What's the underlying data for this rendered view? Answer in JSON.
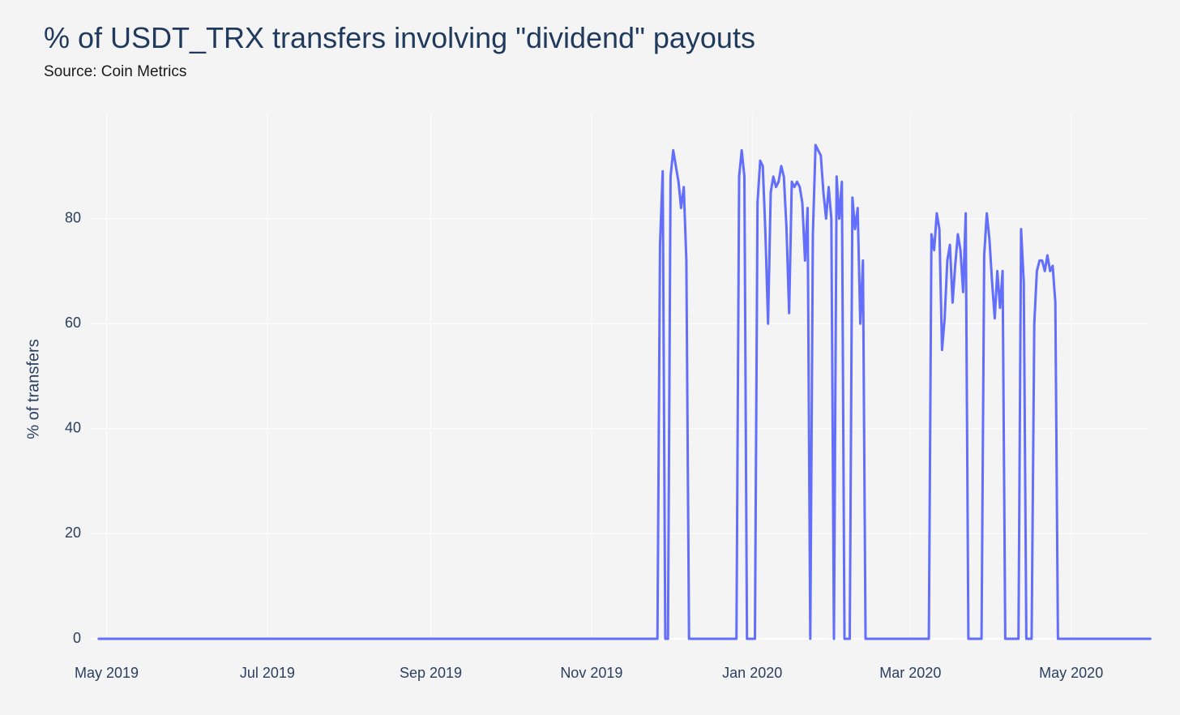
{
  "chart_title": "% of USDT_TRX transfers involving \"dividend\" payouts",
  "chart_subtitle": "Source: Coin Metrics",
  "colors": {
    "background": "#f4f4f4",
    "grid": "#ffffff",
    "line": "#636efa",
    "text": "#2a3f5f"
  },
  "chart_data": {
    "type": "line",
    "title": "% of USDT_TRX transfers involving \"dividend\" payouts",
    "subtitle": "Source: Coin Metrics",
    "xlabel": "",
    "ylabel": "% of transfers",
    "xlim": [
      "2019-04-25",
      "2020-05-30"
    ],
    "ylim": [
      0,
      100
    ],
    "grid": true,
    "x_ticks": [
      {
        "date": "2019-05-01",
        "label": "May 2019"
      },
      {
        "date": "2019-07-01",
        "label": "Jul 2019"
      },
      {
        "date": "2019-09-01",
        "label": "Sep 2019"
      },
      {
        "date": "2019-11-01",
        "label": "Nov 2019"
      },
      {
        "date": "2020-01-01",
        "label": "Jan 2020"
      },
      {
        "date": "2020-03-01",
        "label": "Mar 2020"
      },
      {
        "date": "2020-05-01",
        "label": "May 2020"
      }
    ],
    "y_ticks": [
      0,
      20,
      40,
      60,
      80
    ],
    "series": [
      {
        "color": "#636efa",
        "points": [
          [
            "2019-04-28",
            0
          ],
          [
            "2019-11-26",
            0
          ],
          [
            "2019-11-27",
            75
          ],
          [
            "2019-11-28",
            89
          ],
          [
            "2019-11-29",
            0
          ],
          [
            "2019-11-30",
            0
          ],
          [
            "2019-12-01",
            88
          ],
          [
            "2019-12-02",
            93
          ],
          [
            "2019-12-03",
            90
          ],
          [
            "2019-12-04",
            87
          ],
          [
            "2019-12-05",
            82
          ],
          [
            "2019-12-06",
            86
          ],
          [
            "2019-12-07",
            72
          ],
          [
            "2019-12-08",
            0
          ],
          [
            "2019-12-26",
            0
          ],
          [
            "2019-12-27",
            88
          ],
          [
            "2019-12-28",
            93
          ],
          [
            "2019-12-29",
            88
          ],
          [
            "2019-12-30",
            0
          ],
          [
            "2020-01-02",
            0
          ],
          [
            "2020-01-03",
            83
          ],
          [
            "2020-01-04",
            91
          ],
          [
            "2020-01-05",
            90
          ],
          [
            "2020-01-06",
            77
          ],
          [
            "2020-01-07",
            60
          ],
          [
            "2020-01-08",
            85
          ],
          [
            "2020-01-09",
            88
          ],
          [
            "2020-01-10",
            86
          ],
          [
            "2020-01-11",
            87
          ],
          [
            "2020-01-12",
            90
          ],
          [
            "2020-01-13",
            88
          ],
          [
            "2020-01-14",
            78
          ],
          [
            "2020-01-15",
            62
          ],
          [
            "2020-01-16",
            87
          ],
          [
            "2020-01-17",
            86
          ],
          [
            "2020-01-18",
            87
          ],
          [
            "2020-01-19",
            86
          ],
          [
            "2020-01-20",
            83
          ],
          [
            "2020-01-21",
            72
          ],
          [
            "2020-01-22",
            82
          ],
          [
            "2020-01-23",
            0
          ],
          [
            "2020-01-24",
            77
          ],
          [
            "2020-01-25",
            94
          ],
          [
            "2020-01-26",
            93
          ],
          [
            "2020-01-27",
            92
          ],
          [
            "2020-01-28",
            85
          ],
          [
            "2020-01-29",
            80
          ],
          [
            "2020-01-30",
            86
          ],
          [
            "2020-01-31",
            80
          ],
          [
            "2020-02-01",
            0
          ],
          [
            "2020-02-02",
            88
          ],
          [
            "2020-02-03",
            80
          ],
          [
            "2020-02-04",
            87
          ],
          [
            "2020-02-05",
            0
          ],
          [
            "2020-02-07",
            0
          ],
          [
            "2020-02-08",
            84
          ],
          [
            "2020-02-09",
            78
          ],
          [
            "2020-02-10",
            82
          ],
          [
            "2020-02-11",
            60
          ],
          [
            "2020-02-12",
            72
          ],
          [
            "2020-02-13",
            0
          ],
          [
            "2020-03-08",
            0
          ],
          [
            "2020-03-09",
            77
          ],
          [
            "2020-03-10",
            74
          ],
          [
            "2020-03-11",
            81
          ],
          [
            "2020-03-12",
            78
          ],
          [
            "2020-03-13",
            55
          ],
          [
            "2020-03-14",
            61
          ],
          [
            "2020-03-15",
            72
          ],
          [
            "2020-03-16",
            75
          ],
          [
            "2020-03-17",
            64
          ],
          [
            "2020-03-18",
            71
          ],
          [
            "2020-03-19",
            77
          ],
          [
            "2020-03-20",
            74
          ],
          [
            "2020-03-21",
            66
          ],
          [
            "2020-03-22",
            81
          ],
          [
            "2020-03-23",
            0
          ],
          [
            "2020-03-28",
            0
          ],
          [
            "2020-03-29",
            73
          ],
          [
            "2020-03-30",
            81
          ],
          [
            "2020-03-31",
            76
          ],
          [
            "2020-04-01",
            68
          ],
          [
            "2020-04-02",
            61
          ],
          [
            "2020-04-03",
            70
          ],
          [
            "2020-04-04",
            63
          ],
          [
            "2020-04-05",
            70
          ],
          [
            "2020-04-06",
            0
          ],
          [
            "2020-04-11",
            0
          ],
          [
            "2020-04-12",
            78
          ],
          [
            "2020-04-13",
            68
          ],
          [
            "2020-04-14",
            0
          ],
          [
            "2020-04-16",
            0
          ],
          [
            "2020-04-17",
            60
          ],
          [
            "2020-04-18",
            70
          ],
          [
            "2020-04-19",
            72
          ],
          [
            "2020-04-20",
            72
          ],
          [
            "2020-04-21",
            70
          ],
          [
            "2020-04-22",
            73
          ],
          [
            "2020-04-23",
            70
          ],
          [
            "2020-04-24",
            71
          ],
          [
            "2020-04-25",
            64
          ],
          [
            "2020-04-26",
            0
          ],
          [
            "2020-05-31",
            0
          ]
        ]
      }
    ]
  }
}
